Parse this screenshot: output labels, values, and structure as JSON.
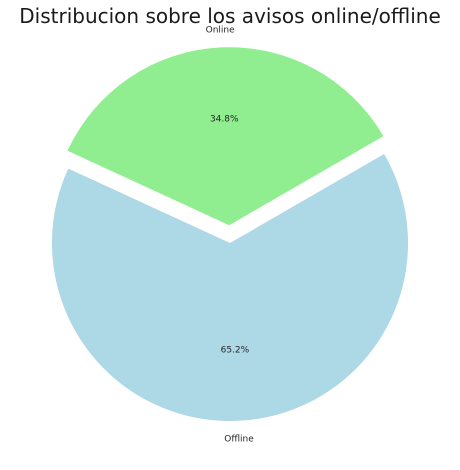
{
  "chart_data": {
    "type": "pie",
    "title": "Distribucion sobre los avisos online/offline",
    "labels": [
      "Online",
      "Offline"
    ],
    "values": [
      34.8,
      65.2
    ],
    "percent_labels": [
      "34.8%",
      "65.2%"
    ],
    "colors": [
      "#90ee90",
      "#add8e6"
    ],
    "explode": [
      0.1,
      0
    ],
    "start_angle_deg": 30,
    "direction": "counterclockwise",
    "legend": "none"
  }
}
